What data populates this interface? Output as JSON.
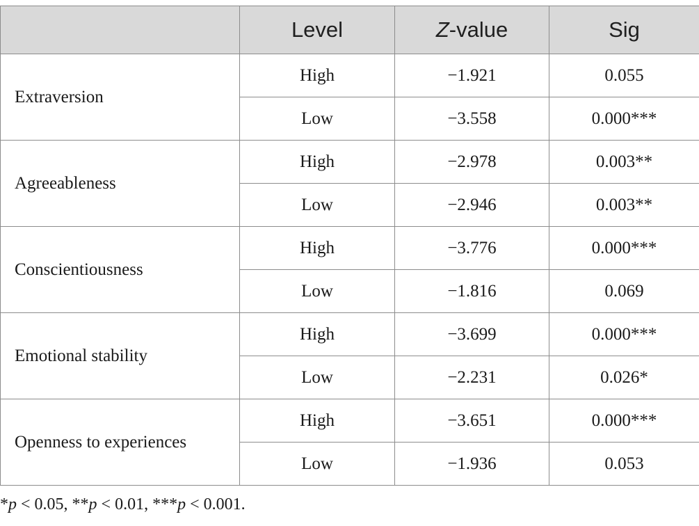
{
  "table": {
    "headers": [
      "",
      "Level",
      "Z-value",
      "Sig"
    ],
    "groups": [
      {
        "trait": "Extraversion",
        "rows": [
          {
            "level": "High",
            "z": "−1.921",
            "sig": "0.055"
          },
          {
            "level": "Low",
            "z": "−3.558",
            "sig": "0.000***"
          }
        ]
      },
      {
        "trait": "Agreeableness",
        "rows": [
          {
            "level": "High",
            "z": "−2.978",
            "sig": "0.003**"
          },
          {
            "level": "Low",
            "z": "−2.946",
            "sig": "0.003**"
          }
        ]
      },
      {
        "trait": "Conscientiousness",
        "rows": [
          {
            "level": "High",
            "z": "−3.776",
            "sig": "0.000***"
          },
          {
            "level": "Low",
            "z": "−1.816",
            "sig": "0.069"
          }
        ]
      },
      {
        "trait": "Emotional stability",
        "rows": [
          {
            "level": "High",
            "z": "−3.699",
            "sig": "0.000***"
          },
          {
            "level": "Low",
            "z": "−2.231",
            "sig": "0.026*"
          }
        ]
      },
      {
        "trait": "Openness to experiences",
        "rows": [
          {
            "level": "High",
            "z": "−3.651",
            "sig": "0.000***"
          },
          {
            "level": "Low",
            "z": "−1.936",
            "sig": "0.053"
          }
        ]
      }
    ]
  },
  "footnote": "*p < 0.05, **p < 0.01, ***p < 0.001."
}
